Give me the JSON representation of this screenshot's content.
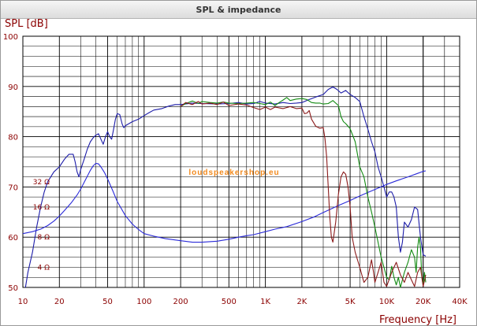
{
  "window": {
    "title": "SPL & impedance"
  },
  "chart_data": {
    "type": "line",
    "title": "SPL & impedance",
    "ylabel": "SPL [dB]",
    "xlabel": "Frequency [Hz]",
    "x_scale": "log",
    "xlim": [
      10,
      40000
    ],
    "ylim": [
      50,
      100
    ],
    "x_ticks": [
      10,
      20,
      50,
      100,
      200,
      500,
      1000,
      2000,
      5000,
      10000,
      20000,
      40000
    ],
    "x_tick_labels": [
      "10",
      "20",
      "50",
      "100",
      "200",
      "500",
      "1K",
      "2K",
      "5K",
      "10K",
      "20K",
      "40K"
    ],
    "y_ticks": [
      50,
      60,
      70,
      80,
      90,
      100
    ],
    "impedance_labels": [
      {
        "text": "32 Ω",
        "y": 71
      },
      {
        "text": "16 Ω",
        "y": 66
      },
      {
        "text": "8 Ω",
        "y": 60
      },
      {
        "text": "4 Ω",
        "y": 54
      }
    ],
    "watermark": "loudspeakershop.eu",
    "grid": true,
    "series": [
      {
        "role": "SPL on-axis",
        "color": "#1c1ca8",
        "points": [
          [
            10.5,
            50
          ],
          [
            11,
            53
          ],
          [
            12,
            57
          ],
          [
            13,
            62
          ],
          [
            14,
            66
          ],
          [
            15,
            69
          ],
          [
            16,
            71
          ],
          [
            17,
            72
          ],
          [
            18,
            73
          ],
          [
            20,
            74
          ],
          [
            22,
            75.5
          ],
          [
            24,
            76.5
          ],
          [
            26,
            76.5
          ],
          [
            27,
            75
          ],
          [
            28,
            73
          ],
          [
            29,
            72
          ],
          [
            30,
            73.5
          ],
          [
            32,
            75.5
          ],
          [
            34,
            77.5
          ],
          [
            36,
            79
          ],
          [
            38,
            79.8
          ],
          [
            40,
            80.3
          ],
          [
            42,
            80.6
          ],
          [
            44,
            79.5
          ],
          [
            46,
            78.5
          ],
          [
            48,
            80
          ],
          [
            50,
            81
          ],
          [
            52,
            80
          ],
          [
            54,
            79.5
          ],
          [
            56,
            81.5
          ],
          [
            58,
            83.5
          ],
          [
            60,
            84.6
          ],
          [
            63,
            84.4
          ],
          [
            66,
            82.5
          ],
          [
            68,
            81.8
          ],
          [
            70,
            82.2
          ],
          [
            80,
            83
          ],
          [
            90,
            83.5
          ],
          [
            100,
            84.2
          ],
          [
            110,
            84.8
          ],
          [
            120,
            85.3
          ],
          [
            140,
            85.6
          ],
          [
            160,
            86.1
          ],
          [
            180,
            86.4
          ],
          [
            200,
            86.4
          ],
          [
            250,
            86.7
          ],
          [
            300,
            86.6
          ],
          [
            400,
            86.5
          ],
          [
            500,
            86.6
          ],
          [
            600,
            86.8
          ],
          [
            700,
            86.5
          ],
          [
            800,
            86.6
          ],
          [
            900,
            87
          ],
          [
            1000,
            86.7
          ],
          [
            1200,
            86.5
          ],
          [
            1400,
            86.8
          ],
          [
            1600,
            86.6
          ],
          [
            1800,
            86.7
          ],
          [
            2000,
            86.8
          ],
          [
            2300,
            87.4
          ],
          [
            2600,
            87.9
          ],
          [
            3000,
            88.4
          ],
          [
            3300,
            89.4
          ],
          [
            3600,
            89.9
          ],
          [
            3900,
            89.4
          ],
          [
            4200,
            88.7
          ],
          [
            4600,
            89.2
          ],
          [
            5000,
            88.4
          ],
          [
            5500,
            87.8
          ],
          [
            6000,
            87
          ],
          [
            6500,
            84
          ],
          [
            7000,
            81.5
          ],
          [
            7500,
            79
          ],
          [
            8000,
            77
          ],
          [
            8500,
            74
          ],
          [
            9000,
            72
          ],
          [
            9500,
            70
          ],
          [
            10000,
            68
          ],
          [
            10500,
            69
          ],
          [
            11000,
            69
          ],
          [
            11500,
            68
          ],
          [
            12000,
            66
          ],
          [
            12500,
            60
          ],
          [
            13000,
            57
          ],
          [
            13500,
            59
          ],
          [
            14000,
            63
          ],
          [
            15000,
            62
          ],
          [
            16000,
            63.5
          ],
          [
            17000,
            66
          ],
          [
            18000,
            65.5
          ],
          [
            19000,
            60
          ],
          [
            20000,
            56.5
          ],
          [
            21000,
            56.2
          ]
        ]
      },
      {
        "role": "Impedance",
        "color": "#2a2ad8",
        "points": [
          [
            10,
            60.7
          ],
          [
            12,
            61.1
          ],
          [
            14,
            61.6
          ],
          [
            16,
            62.3
          ],
          [
            18,
            63.2
          ],
          [
            20,
            64.2
          ],
          [
            22,
            65.3
          ],
          [
            25,
            66.8
          ],
          [
            28,
            68.4
          ],
          [
            30,
            69.6
          ],
          [
            33,
            71.5
          ],
          [
            36,
            73.3
          ],
          [
            38,
            74.2
          ],
          [
            40,
            74.7
          ],
          [
            42,
            74.6
          ],
          [
            44,
            74
          ],
          [
            47,
            72.9
          ],
          [
            50,
            71.6
          ],
          [
            55,
            69.3
          ],
          [
            60,
            67.1
          ],
          [
            70,
            64.3
          ],
          [
            80,
            62.6
          ],
          [
            90,
            61.5
          ],
          [
            100,
            60.7
          ],
          [
            120,
            60.2
          ],
          [
            150,
            59.7
          ],
          [
            200,
            59.3
          ],
          [
            250,
            59
          ],
          [
            300,
            59
          ],
          [
            400,
            59.2
          ],
          [
            500,
            59.6
          ],
          [
            600,
            60
          ],
          [
            700,
            60.3
          ],
          [
            800,
            60.5
          ],
          [
            1000,
            61.1
          ],
          [
            1200,
            61.6
          ],
          [
            1500,
            62.1
          ],
          [
            2000,
            63.1
          ],
          [
            2500,
            64
          ],
          [
            3000,
            64.9
          ],
          [
            4000,
            66.3
          ],
          [
            5000,
            67.3
          ],
          [
            6000,
            68.2
          ],
          [
            7000,
            68.9
          ],
          [
            8000,
            69.5
          ],
          [
            10000,
            70.5
          ],
          [
            12000,
            71.2
          ],
          [
            15000,
            72
          ],
          [
            18000,
            72.7
          ],
          [
            20000,
            73.1
          ],
          [
            21000,
            73.2
          ]
        ]
      },
      {
        "role": "SPL off-axis 1",
        "color": "#128a12",
        "points": [
          [
            200,
            86
          ],
          [
            220,
            86.6
          ],
          [
            250,
            87.1
          ],
          [
            280,
            86.6
          ],
          [
            300,
            87
          ],
          [
            350,
            86.8
          ],
          [
            400,
            86.7
          ],
          [
            450,
            86.9
          ],
          [
            500,
            86.7
          ],
          [
            600,
            86.6
          ],
          [
            700,
            86.7
          ],
          [
            800,
            86.8
          ],
          [
            900,
            86.6
          ],
          [
            1000,
            86.4
          ],
          [
            1100,
            86.9
          ],
          [
            1200,
            86.2
          ],
          [
            1300,
            86.8
          ],
          [
            1400,
            87.3
          ],
          [
            1500,
            87.8
          ],
          [
            1600,
            87.2
          ],
          [
            1800,
            87.5
          ],
          [
            2000,
            87.6
          ],
          [
            2200,
            87.4
          ],
          [
            2400,
            86.8
          ],
          [
            2600,
            86.7
          ],
          [
            2800,
            86.7
          ],
          [
            3000,
            86.5
          ],
          [
            3300,
            86.6
          ],
          [
            3600,
            87.2
          ],
          [
            4000,
            86.2
          ],
          [
            4200,
            84
          ],
          [
            4400,
            83
          ],
          [
            4600,
            82.6
          ],
          [
            5000,
            81.6
          ],
          [
            5500,
            79
          ],
          [
            6000,
            74
          ],
          [
            6500,
            72
          ],
          [
            7000,
            68
          ],
          [
            7500,
            65
          ],
          [
            8000,
            62
          ],
          [
            8500,
            59
          ],
          [
            9000,
            56
          ],
          [
            9500,
            54
          ],
          [
            10000,
            52
          ],
          [
            10500,
            51.5
          ],
          [
            11000,
            54.2
          ],
          [
            11500,
            52
          ],
          [
            12000,
            50.5
          ],
          [
            12500,
            52
          ],
          [
            13000,
            50
          ],
          [
            14000,
            53
          ],
          [
            15000,
            55
          ],
          [
            16000,
            57.5
          ],
          [
            17000,
            56
          ],
          [
            17500,
            53
          ],
          [
            18000,
            58
          ],
          [
            18500,
            60
          ],
          [
            19000,
            58
          ],
          [
            19500,
            52
          ],
          [
            20000,
            50.5
          ],
          [
            20500,
            53
          ],
          [
            21000,
            51
          ]
        ]
      },
      {
        "role": "SPL off-axis 2",
        "color": "#8b1a1a",
        "points": [
          [
            200,
            86
          ],
          [
            220,
            86.8
          ],
          [
            250,
            86.4
          ],
          [
            280,
            87
          ],
          [
            300,
            86.5
          ],
          [
            350,
            86.7
          ],
          [
            400,
            86.4
          ],
          [
            450,
            86.9
          ],
          [
            500,
            86.2
          ],
          [
            600,
            86.5
          ],
          [
            700,
            86.3
          ],
          [
            800,
            85.8
          ],
          [
            900,
            85.4
          ],
          [
            1000,
            85.9
          ],
          [
            1100,
            85.4
          ],
          [
            1200,
            85.9
          ],
          [
            1400,
            85.6
          ],
          [
            1600,
            86
          ],
          [
            1800,
            85.6
          ],
          [
            2000,
            85.7
          ],
          [
            2100,
            84.6
          ],
          [
            2200,
            84.7
          ],
          [
            2300,
            85.2
          ],
          [
            2400,
            83.5
          ],
          [
            2600,
            82.1
          ],
          [
            2800,
            81.7
          ],
          [
            3000,
            81.8
          ],
          [
            3100,
            79.6
          ],
          [
            3200,
            76
          ],
          [
            3300,
            70
          ],
          [
            3400,
            64
          ],
          [
            3500,
            60
          ],
          [
            3600,
            59
          ],
          [
            3700,
            61
          ],
          [
            3800,
            63
          ],
          [
            4000,
            68.5
          ],
          [
            4200,
            72
          ],
          [
            4400,
            73
          ],
          [
            4600,
            72.5
          ],
          [
            4800,
            70
          ],
          [
            5000,
            66
          ],
          [
            5200,
            60
          ],
          [
            5500,
            57
          ],
          [
            6000,
            54
          ],
          [
            6500,
            51
          ],
          [
            7000,
            52
          ],
          [
            7500,
            55.5
          ],
          [
            7800,
            53
          ],
          [
            8000,
            51
          ],
          [
            8500,
            53
          ],
          [
            9000,
            55
          ],
          [
            9500,
            51
          ],
          [
            10000,
            50.2
          ],
          [
            11000,
            53
          ],
          [
            12000,
            55
          ],
          [
            13000,
            52.5
          ],
          [
            14000,
            51
          ],
          [
            15000,
            53
          ],
          [
            16000,
            51.5
          ],
          [
            17000,
            50.2
          ],
          [
            18000,
            53
          ],
          [
            19000,
            54
          ],
          [
            20000,
            50.2
          ],
          [
            21000,
            52.5
          ]
        ]
      }
    ]
  }
}
